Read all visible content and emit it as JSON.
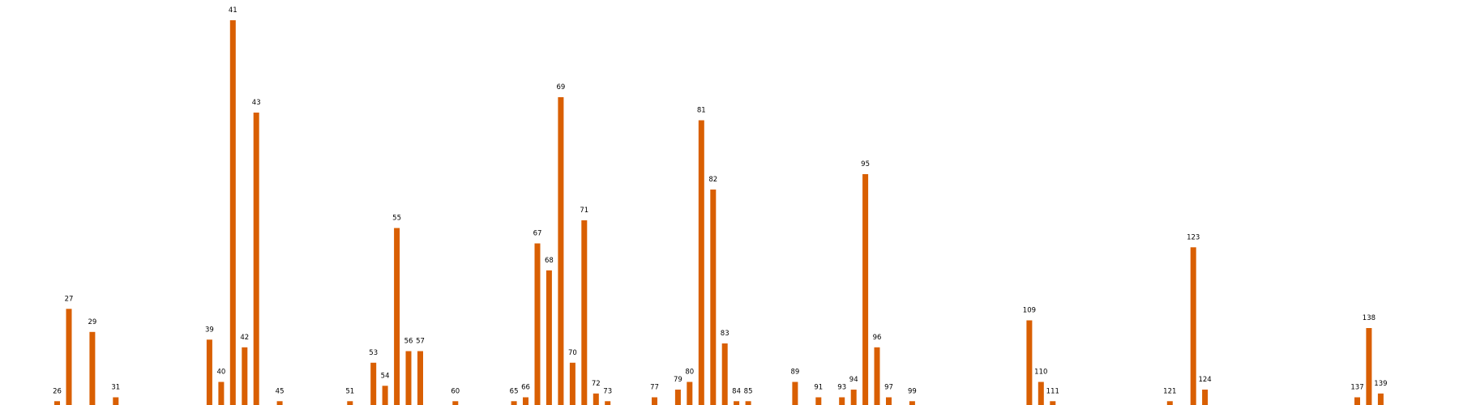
{
  "chart_data": {
    "type": "bar",
    "title": "",
    "xlabel": "",
    "ylabel": "",
    "axes_visible": false,
    "grid": false,
    "legend": "none",
    "bar_color": "#d95f02",
    "categories": [
      "26",
      "27",
      "29",
      "31",
      "39",
      "40",
      "41",
      "42",
      "43",
      "45",
      "51",
      "53",
      "54",
      "55",
      "56",
      "57",
      "60",
      "65",
      "66",
      "67",
      "68",
      "69",
      "70",
      "71",
      "72",
      "73",
      "77",
      "79",
      "80",
      "81",
      "82",
      "83",
      "84",
      "85",
      "89",
      "91",
      "93",
      "94",
      "95",
      "96",
      "97",
      "99",
      "109",
      "110",
      "111",
      "121",
      "123",
      "124",
      "137",
      "138",
      "139"
    ],
    "values": [
      1,
      25,
      19,
      2,
      17,
      6,
      100,
      15,
      76,
      1,
      1,
      11,
      5,
      46,
      14,
      14,
      1,
      1,
      2,
      42,
      35,
      80,
      11,
      48,
      3,
      1,
      2,
      4,
      6,
      74,
      56,
      16,
      1,
      1,
      6,
      2,
      2,
      4,
      60,
      15,
      2,
      1,
      22,
      6,
      1,
      1,
      41,
      4,
      2,
      20,
      3
    ],
    "x_range": [
      20,
      142
    ],
    "y_range": [
      0,
      100
    ]
  }
}
